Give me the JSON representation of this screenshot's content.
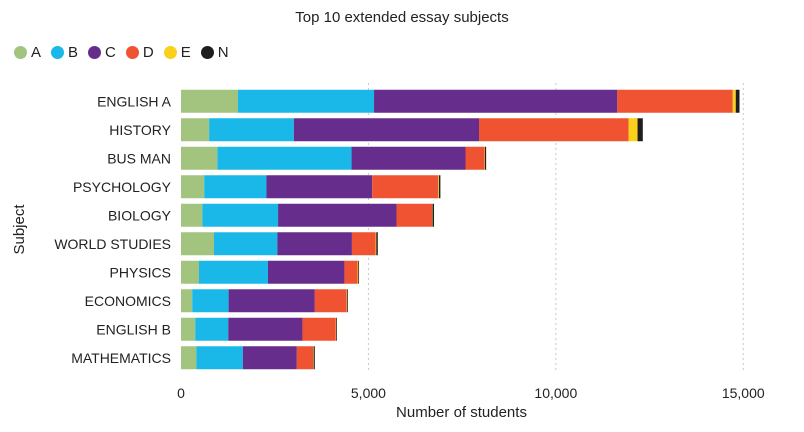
{
  "chart_data": {
    "type": "bar",
    "orientation": "horizontal",
    "stacked": true,
    "title": "Top 10 extended essay subjects",
    "xlabel": "Number of students",
    "ylabel": "Subject",
    "xlim": [
      0,
      15500
    ],
    "xticks": [
      0,
      5000,
      10000,
      15000
    ],
    "xtick_labels": [
      "0",
      "5,000",
      "10,000",
      "15,000"
    ],
    "grid": "vertical dotted",
    "legend_position": "top-left",
    "categories": [
      "ENGLISH A",
      "HISTORY",
      "BUS MAN",
      "PSYCHOLOGY",
      "BIOLOGY",
      "WORLD STUDIES",
      "PHYSICS",
      "ECONOMICS",
      "ENGLISH B",
      "MATHEMATICS"
    ],
    "series": [
      {
        "name": "A",
        "color": "#a3c47f",
        "values": [
          1520,
          750,
          970,
          620,
          570,
          880,
          480,
          300,
          380,
          410
        ]
      },
      {
        "name": "B",
        "color": "#1ab8e8",
        "values": [
          3630,
          2260,
          3580,
          1660,
          2020,
          1690,
          1840,
          970,
          880,
          1240
        ]
      },
      {
        "name": "C",
        "color": "#662d8c",
        "values": [
          6490,
          4940,
          3040,
          2820,
          3160,
          1990,
          2040,
          2300,
          1980,
          1440
        ]
      },
      {
        "name": "D",
        "color": "#ef5331",
        "values": [
          3080,
          3990,
          510,
          1760,
          950,
          630,
          350,
          850,
          890,
          440
        ]
      },
      {
        "name": "E",
        "color": "#f9d11a",
        "values": [
          80,
          240,
          10,
          20,
          10,
          20,
          20,
          10,
          10,
          10
        ]
      },
      {
        "name": "N",
        "color": "#1e1e1e",
        "values": [
          100,
          140,
          30,
          40,
          40,
          40,
          20,
          20,
          20,
          30
        ]
      }
    ]
  }
}
